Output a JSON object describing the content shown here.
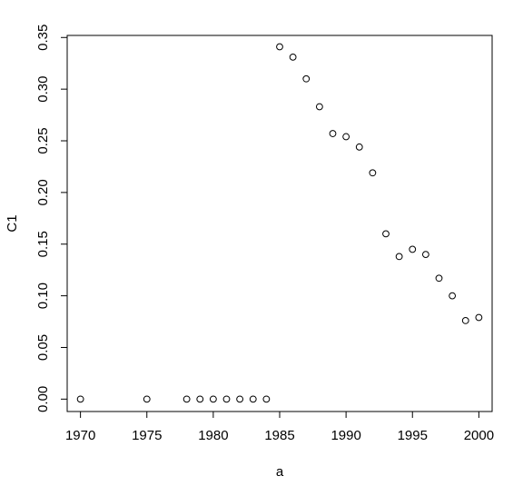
{
  "chart_data": {
    "type": "scatter",
    "title": "",
    "xlabel": "a",
    "ylabel": "C1",
    "xlim": [
      1969,
      2001
    ],
    "ylim": [
      -0.012,
      0.352
    ],
    "xticks": [
      1970,
      1975,
      1980,
      1985,
      1990,
      1995,
      2000
    ],
    "yticks": [
      0.0,
      0.05,
      0.1,
      0.15,
      0.2,
      0.25,
      0.3,
      0.35
    ],
    "ytick_labels": [
      "0.00",
      "0.05",
      "0.10",
      "0.15",
      "0.20",
      "0.25",
      "0.30",
      "0.35"
    ],
    "grid": false,
    "legend": "none",
    "marker": "open-circle",
    "x": [
      1970,
      1975,
      1978,
      1979,
      1980,
      1981,
      1982,
      1983,
      1984,
      1985,
      1986,
      1987,
      1988,
      1989,
      1990,
      1991,
      1992,
      1993,
      1994,
      1995,
      1996,
      1997,
      1998,
      1999,
      2000
    ],
    "y": [
      0.0,
      0.0,
      0.0,
      0.0,
      0.0,
      0.0,
      0.0,
      0.0,
      0.0,
      0.341,
      0.331,
      0.31,
      0.283,
      0.257,
      0.254,
      0.244,
      0.219,
      0.16,
      0.138,
      0.145,
      0.14,
      0.117,
      0.1,
      0.076,
      0.079
    ]
  }
}
